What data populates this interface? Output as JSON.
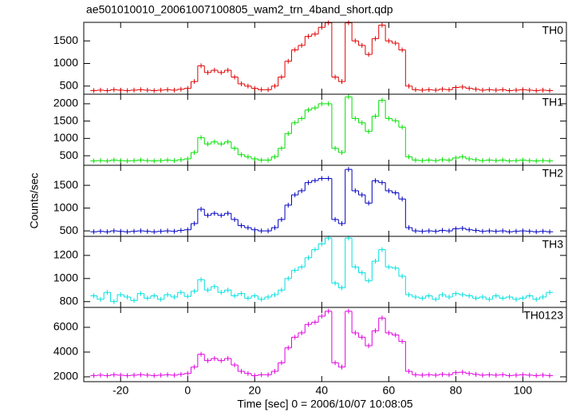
{
  "chart_data": [
    {
      "type": "line",
      "title": "ae501010010_20061007100805_wam2_trn_4band_short.qdp",
      "label": "TH0",
      "color": "#e00000",
      "x": [
        -28,
        -26,
        -24,
        -22,
        -20,
        -18,
        -16,
        -14,
        -12,
        -10,
        -8,
        -6,
        -4,
        -2,
        0,
        2,
        4,
        6,
        8,
        10,
        12,
        14,
        16,
        18,
        20,
        22,
        24,
        26,
        28,
        30,
        32,
        34,
        36,
        38,
        40,
        42,
        44,
        46,
        48,
        50,
        52,
        54,
        56,
        58,
        60,
        62,
        64,
        66,
        68,
        70,
        72,
        74,
        76,
        78,
        80,
        82,
        84,
        86,
        88,
        90,
        92,
        94,
        96,
        98,
        100,
        102,
        104,
        106,
        108
      ],
      "values": [
        400,
        410,
        400,
        420,
        410,
        400,
        410,
        420,
        410,
        400,
        410,
        420,
        410,
        430,
        450,
        600,
        950,
        800,
        850,
        800,
        850,
        700,
        550,
        500,
        450,
        420,
        420,
        500,
        700,
        1050,
        1300,
        1400,
        1600,
        1650,
        1800,
        1900,
        700,
        600,
        1900,
        1500,
        1400,
        1200,
        1550,
        1850,
        1500,
        1450,
        1300,
        500,
        420,
        410,
        420,
        410,
        430,
        420,
        470,
        480,
        450,
        430,
        410,
        420,
        410,
        420,
        400,
        410,
        420,
        410,
        400,
        410,
        400
      ],
      "xlim": [
        -31,
        113
      ],
      "ylim": [
        320,
        1910
      ],
      "yticks": [
        500,
        1000,
        1500
      ],
      "xticks": [
        -20,
        0,
        20,
        40,
        60,
        80,
        100
      ]
    },
    {
      "type": "line",
      "label": "TH1",
      "color": "#00e000",
      "x": [
        -28,
        -26,
        -24,
        -22,
        -20,
        -18,
        -16,
        -14,
        -12,
        -10,
        -8,
        -6,
        -4,
        -2,
        0,
        2,
        4,
        6,
        8,
        10,
        12,
        14,
        16,
        18,
        20,
        22,
        24,
        26,
        28,
        30,
        32,
        34,
        36,
        38,
        40,
        42,
        44,
        46,
        48,
        50,
        52,
        54,
        56,
        58,
        60,
        62,
        64,
        66,
        68,
        70,
        72,
        74,
        76,
        78,
        80,
        82,
        84,
        86,
        88,
        90,
        92,
        94,
        96,
        98,
        100,
        102,
        104,
        106,
        108
      ],
      "values": [
        350,
        360,
        350,
        375,
        360,
        350,
        360,
        375,
        360,
        350,
        360,
        375,
        360,
        385,
        410,
        595,
        1025,
        840,
        900,
        840,
        900,
        715,
        530,
        470,
        410,
        375,
        375,
        470,
        715,
        1140,
        1450,
        1575,
        1820,
        1880,
        2000,
        2000,
        715,
        595,
        2200,
        1575,
        1450,
        1200,
        1640,
        2100,
        1575,
        1510,
        1325,
        470,
        375,
        360,
        375,
        360,
        385,
        375,
        435,
        470,
        410,
        385,
        360,
        375,
        360,
        375,
        350,
        360,
        375,
        360,
        350,
        360,
        350
      ],
      "xlim": [
        -31,
        113
      ],
      "ylim": [
        225,
        2275
      ],
      "yticks": [
        500,
        1000,
        1500,
        2000
      ],
      "xticks": [
        -20,
        0,
        20,
        40,
        60,
        80,
        100
      ]
    },
    {
      "type": "line",
      "label": "TH2",
      "color": "#0000c0",
      "ylabel": "Counts/sec",
      "x": [
        -28,
        -26,
        -24,
        -22,
        -20,
        -18,
        -16,
        -14,
        -12,
        -10,
        -8,
        -6,
        -4,
        -2,
        0,
        2,
        4,
        6,
        8,
        10,
        12,
        14,
        16,
        18,
        20,
        22,
        24,
        26,
        28,
        30,
        32,
        34,
        36,
        38,
        40,
        42,
        44,
        46,
        48,
        50,
        52,
        54,
        56,
        58,
        60,
        62,
        64,
        66,
        68,
        70,
        72,
        74,
        76,
        78,
        80,
        82,
        84,
        86,
        88,
        90,
        92,
        94,
        96,
        98,
        100,
        102,
        104,
        106,
        108
      ],
      "values": [
        480,
        490,
        480,
        500,
        490,
        480,
        490,
        500,
        490,
        480,
        490,
        500,
        490,
        510,
        525,
        660,
        975,
        840,
        885,
        840,
        885,
        750,
        615,
        570,
        525,
        500,
        500,
        570,
        750,
        1065,
        1290,
        1380,
        1560,
        1605,
        1650,
        1650,
        750,
        660,
        1850,
        1380,
        1290,
        1110,
        1600,
        1560,
        1380,
        1335,
        1200,
        570,
        500,
        490,
        500,
        490,
        510,
        500,
        545,
        555,
        525,
        510,
        490,
        500,
        490,
        500,
        480,
        490,
        500,
        490,
        480,
        490,
        480
      ],
      "xlim": [
        -31,
        113
      ],
      "ylim": [
        380,
        1940
      ],
      "yticks": [
        500,
        1000,
        1500
      ],
      "xticks": [
        -20,
        0,
        20,
        40,
        60,
        80,
        100
      ]
    },
    {
      "type": "line",
      "label": "TH3",
      "color": "#00e0e0",
      "x": [
        -28,
        -26,
        -24,
        -22,
        -20,
        -18,
        -16,
        -14,
        -12,
        -10,
        -8,
        -6,
        -4,
        -2,
        0,
        2,
        4,
        6,
        8,
        10,
        12,
        14,
        16,
        18,
        20,
        22,
        24,
        26,
        28,
        30,
        32,
        34,
        36,
        38,
        40,
        42,
        44,
        46,
        48,
        50,
        52,
        54,
        56,
        58,
        60,
        62,
        64,
        66,
        68,
        70,
        72,
        74,
        76,
        78,
        80,
        82,
        84,
        86,
        88,
        90,
        92,
        94,
        96,
        98,
        100,
        102,
        104,
        106,
        108
      ],
      "values": [
        850,
        820,
        880,
        800,
        860,
        840,
        810,
        870,
        830,
        850,
        820,
        860,
        840,
        880,
        845,
        890,
        990,
        900,
        930,
        880,
        900,
        850,
        870,
        830,
        850,
        820,
        840,
        860,
        900,
        1000,
        1070,
        1100,
        1180,
        1250,
        1300,
        1350,
        960,
        920,
        1350,
        1100,
        1050,
        980,
        1150,
        1250,
        1100,
        1090,
        1020,
        860,
        840,
        830,
        850,
        820,
        860,
        840,
        870,
        860,
        850,
        830,
        840,
        820,
        850,
        830,
        840,
        820,
        830,
        850,
        820,
        840,
        880
      ],
      "xlim": [
        -31,
        113
      ],
      "ylim": [
        750,
        1365
      ],
      "yticks": [
        800,
        1000,
        1200
      ],
      "xticks": [
        -20,
        0,
        20,
        40,
        60,
        80,
        100
      ]
    },
    {
      "type": "line",
      "label": "TH0123",
      "color": "#e000e0",
      "xlabel": "Time [sec] 0 = 2006/10/07 10:08:05",
      "x": [
        -28,
        -26,
        -24,
        -22,
        -20,
        -18,
        -16,
        -14,
        -12,
        -10,
        -8,
        -6,
        -4,
        -2,
        0,
        2,
        4,
        6,
        8,
        10,
        12,
        14,
        16,
        18,
        20,
        22,
        24,
        26,
        28,
        30,
        32,
        34,
        36,
        38,
        40,
        42,
        44,
        46,
        48,
        50,
        52,
        54,
        56,
        58,
        60,
        62,
        64,
        66,
        68,
        70,
        72,
        74,
        76,
        78,
        80,
        82,
        84,
        86,
        88,
        90,
        92,
        94,
        96,
        98,
        100,
        102,
        104,
        106,
        108
      ],
      "values": [
        2100,
        2135,
        2100,
        2170,
        2135,
        2100,
        2135,
        2170,
        2135,
        2100,
        2135,
        2170,
        2135,
        2200,
        2270,
        2790,
        3825,
        3310,
        3480,
        3310,
        3480,
        2960,
        2445,
        2270,
        2100,
        2170,
        2170,
        2445,
        3135,
        4340,
        5200,
        5550,
        6240,
        6410,
        6900,
        7300,
        3135,
        2790,
        7300,
        5550,
        5200,
        4510,
        5720,
        6750,
        5550,
        5380,
        4860,
        2445,
        2170,
        2135,
        2170,
        2135,
        2200,
        2170,
        2340,
        2375,
        2270,
        2200,
        2135,
        2170,
        2135,
        2170,
        2100,
        2135,
        2170,
        2135,
        2100,
        2135,
        2100
      ],
      "xlim": [
        -31,
        113
      ],
      "ylim": [
        1610,
        7610
      ],
      "yticks": [
        2000,
        4000,
        6000
      ],
      "xticks": [
        -20,
        0,
        20,
        40,
        60,
        80,
        100
      ],
      "xticklabels": true
    }
  ]
}
